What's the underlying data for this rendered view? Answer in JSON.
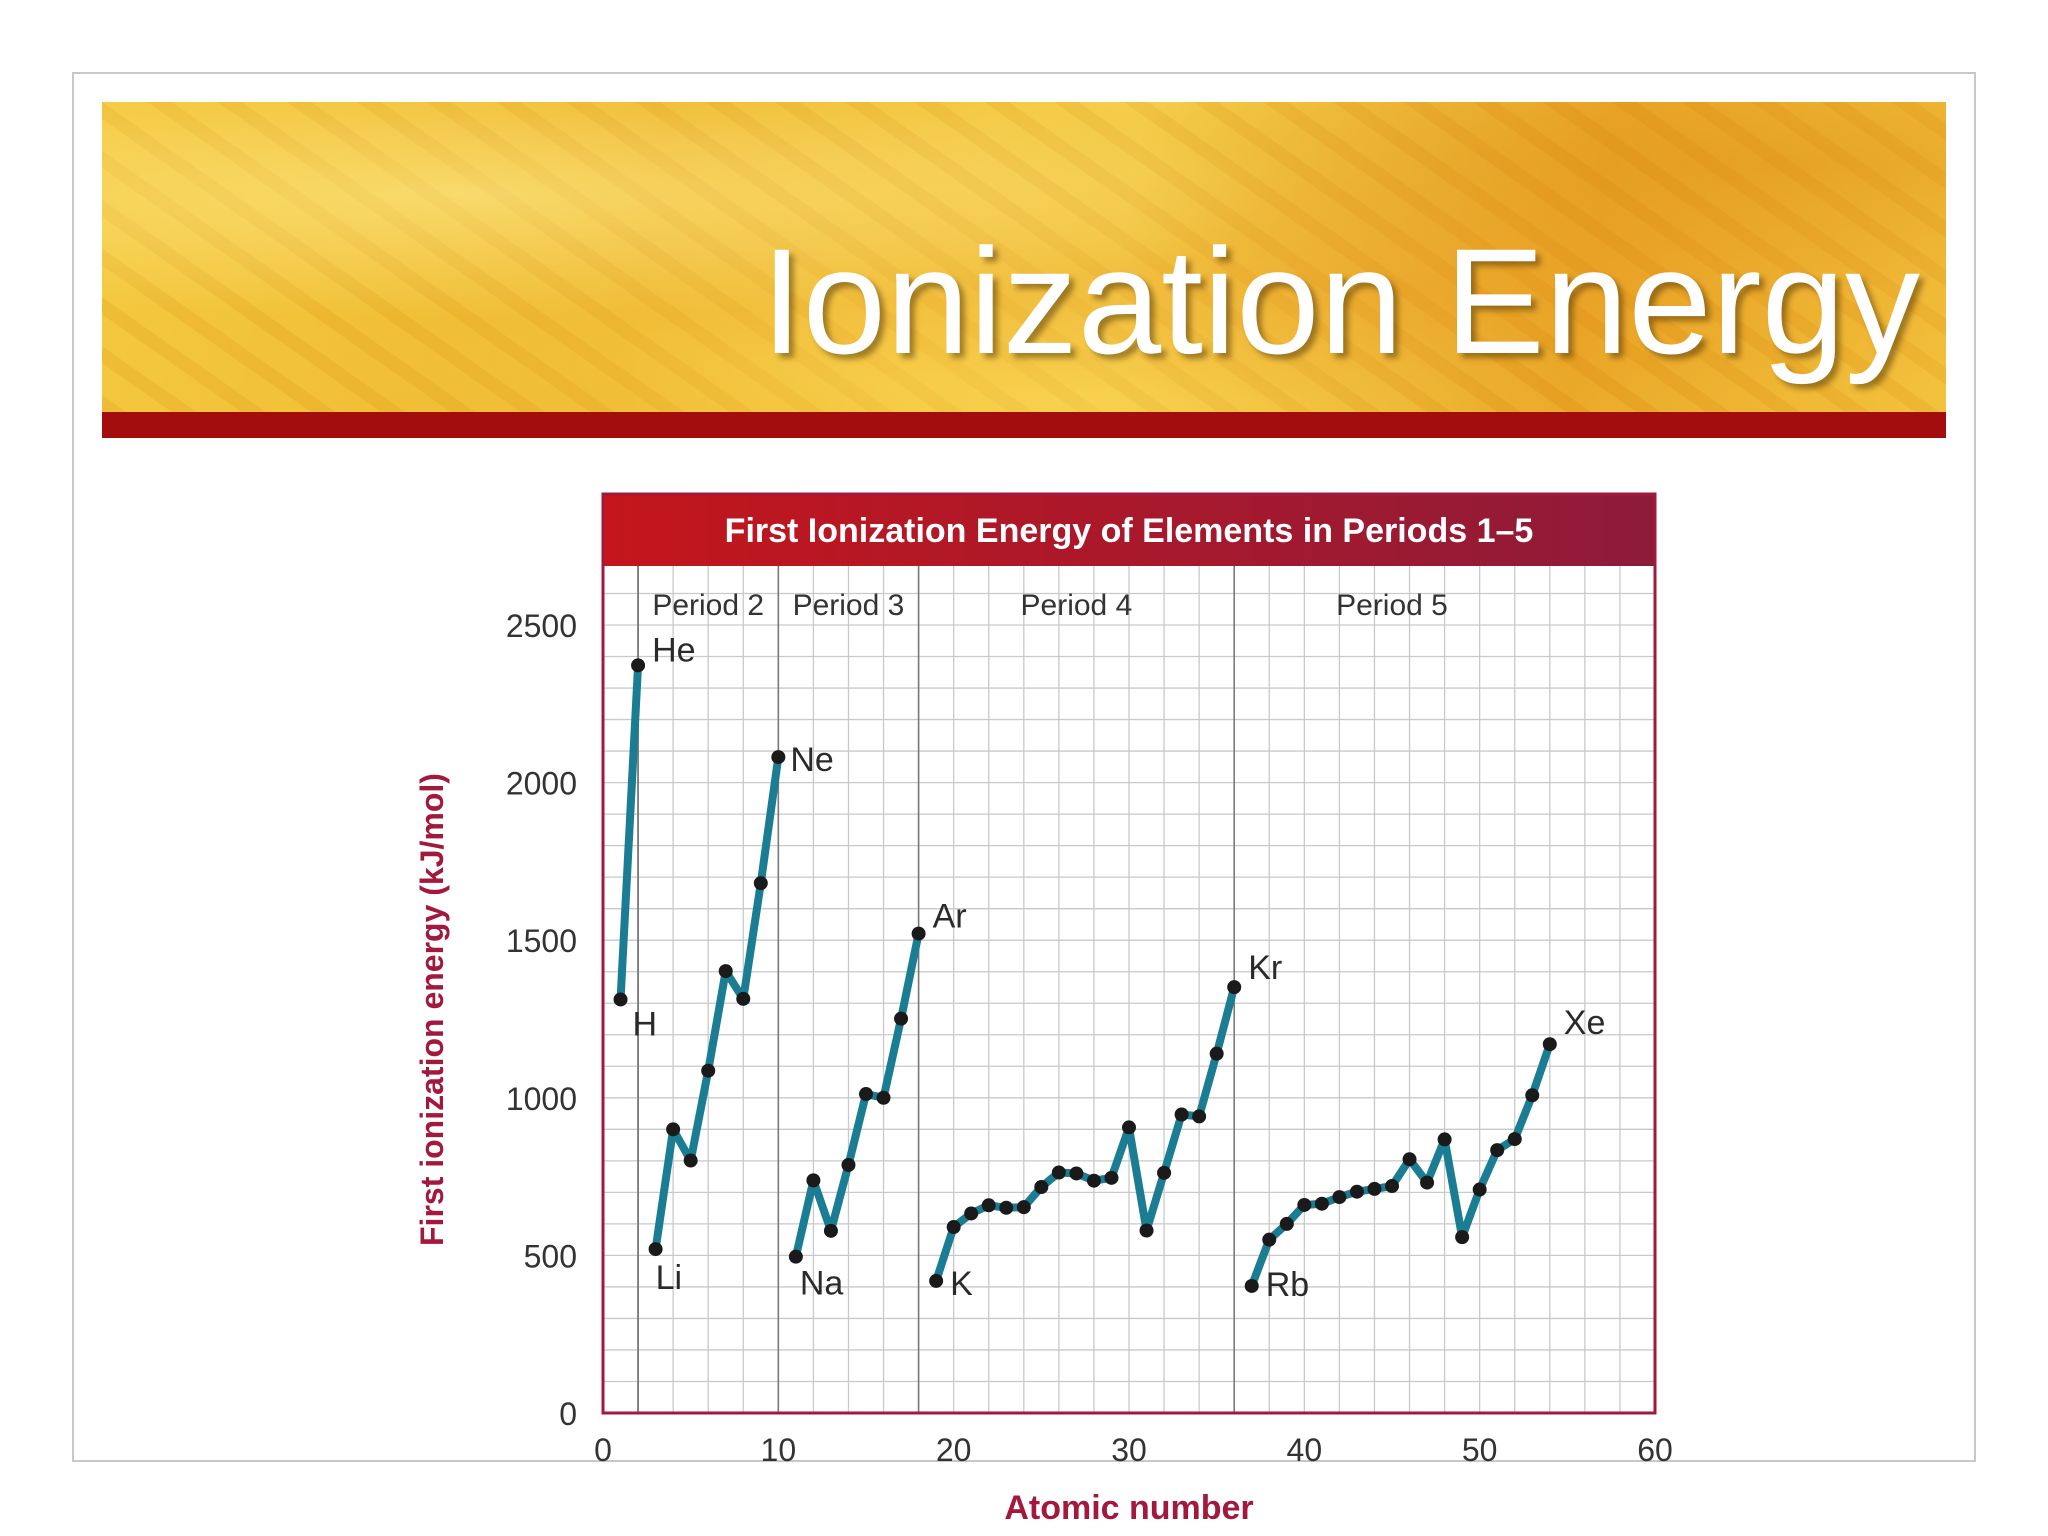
{
  "slide": {
    "title": "Ionization Energy"
  },
  "chart_data": {
    "type": "line",
    "title": "First Ionization Energy of Elements in Periods 1–5",
    "xlabel": "Atomic number",
    "ylabel": "First ionization energy (kJ/mol)",
    "xlim": [
      0,
      60
    ],
    "ylim": [
      0,
      2500
    ],
    "x_ticks": [
      0,
      10,
      20,
      30,
      40,
      50,
      60
    ],
    "y_ticks": [
      0,
      500,
      1000,
      1500,
      2000,
      2500
    ],
    "grid": true,
    "periods": [
      {
        "label": "Period 2",
        "x_start": 3,
        "x_end": 10
      },
      {
        "label": "Period 3",
        "x_start": 11,
        "x_end": 18
      },
      {
        "label": "Period 4",
        "x_start": 19,
        "x_end": 36
      },
      {
        "label": "Period 5",
        "x_start": 37,
        "x_end": 54
      }
    ],
    "series": [
      {
        "x": [
          1,
          2
        ],
        "y": [
          1312,
          2372
        ]
      },
      {
        "x": [
          3,
          4,
          5,
          6,
          7,
          8,
          9,
          10
        ],
        "y": [
          520,
          900,
          801,
          1086,
          1402,
          1314,
          1681,
          2081
        ]
      },
      {
        "x": [
          11,
          12,
          13,
          14,
          15,
          16,
          17,
          18
        ],
        "y": [
          496,
          738,
          578,
          787,
          1012,
          1000,
          1251,
          1521
        ]
      },
      {
        "x": [
          19,
          20,
          21,
          22,
          23,
          24,
          25,
          26,
          27,
          28,
          29,
          30,
          31,
          32,
          33,
          34,
          35,
          36
        ],
        "y": [
          419,
          590,
          633,
          659,
          651,
          653,
          717,
          763,
          760,
          737,
          746,
          906,
          579,
          762,
          947,
          941,
          1140,
          1351
        ]
      },
      {
        "x": [
          37,
          38,
          39,
          40,
          41,
          42,
          43,
          44,
          45,
          46,
          47,
          48,
          49,
          50,
          51,
          52,
          53,
          54
        ],
        "y": [
          403,
          550,
          600,
          660,
          664,
          685,
          702,
          711,
          720,
          805,
          731,
          868,
          558,
          709,
          834,
          869,
          1008,
          1170
        ]
      }
    ],
    "annotations": [
      {
        "text": "H",
        "x": 1,
        "y": 1312
      },
      {
        "text": "He",
        "x": 2,
        "y": 2372
      },
      {
        "text": "Li",
        "x": 3,
        "y": 520
      },
      {
        "text": "Ne",
        "x": 10,
        "y": 2081
      },
      {
        "text": "Na",
        "x": 11,
        "y": 496
      },
      {
        "text": "Ar",
        "x": 18,
        "y": 1521
      },
      {
        "text": "K",
        "x": 19,
        "y": 419
      },
      {
        "text": "Kr",
        "x": 36,
        "y": 1351
      },
      {
        "text": "Rb",
        "x": 37,
        "y": 403
      },
      {
        "text": "Xe",
        "x": 54,
        "y": 1170
      }
    ],
    "colors": {
      "line": "#1b7d93",
      "marker": "#1a1a1a",
      "frame": "#a3183d",
      "title_bg": "#b3152b",
      "axis_label": "#a3183d"
    }
  }
}
